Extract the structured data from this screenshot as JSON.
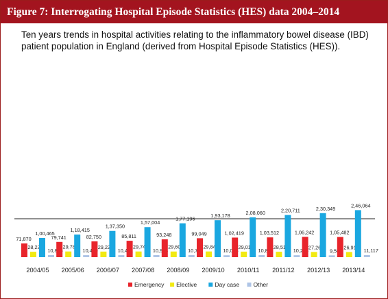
{
  "header": {
    "title": "Figure 7: Interrogating Hospital Episode Statistics (HES) data 2004–2014"
  },
  "colors": {
    "header_bg": "#a3141f",
    "emergency": "#e8242b",
    "elective": "#f2ea12",
    "day_case": "#1aa7e0",
    "other": "#aec4e6"
  },
  "chart_data": {
    "type": "bar",
    "title": "Ten years trends in hospital activities relating to the inflammatory bowel disease (IBD) patient population in England (derived from Hospital Episode Statistics (HES)).",
    "categories": [
      "2004/05",
      "2005/06",
      "2006/07",
      "2007/08",
      "2008/09",
      "2009/10",
      "2010/11",
      "2011/12",
      "2012/13",
      "2013/14"
    ],
    "series": [
      {
        "name": "Emergency",
        "color": "#e8242b",
        "values": [
          71870,
          79741,
          82750,
          85811,
          93248,
          99049,
          102419,
          103512,
          106242,
          105482
        ],
        "labels": [
          "71,870",
          "79,741",
          "82,750",
          "85,811",
          "93,248",
          "99,049",
          "1,02,419",
          "1,03,512",
          "1,06,242",
          "1,05,482"
        ]
      },
      {
        "name": "Elective",
        "color": "#f2ea12",
        "values": [
          28230,
          29787,
          29227,
          29749,
          29603,
          29841,
          29018,
          28519,
          27260,
          26911
        ],
        "labels": [
          "28,230",
          "29,787",
          "29,227",
          "29,749",
          "29,603",
          "29,841",
          "29,018",
          "28,519",
          "27,260",
          "26,911"
        ]
      },
      {
        "name": "Day case",
        "color": "#1aa7e0",
        "values": [
          100465,
          118415,
          137350,
          157004,
          177196,
          193178,
          208060,
          220711,
          230349,
          246064
        ],
        "labels": [
          "1,00,465",
          "1,18,415",
          "1,37,350",
          "1,57,004",
          "1,77,196",
          "1,93,178",
          "2,08,060",
          "2,20,711",
          "2,30,349",
          "2,46,064"
        ]
      },
      {
        "name": "Other",
        "color": "#aec4e6",
        "values": [
          10825,
          10459,
          10481,
          10954,
          10707,
          10058,
          10831,
          10268,
          9569,
          11117
        ],
        "labels": [
          "10,825",
          "10,459",
          "10,481",
          "10,954",
          "10,707",
          "10,058",
          "10,831",
          "10,268",
          "9,569",
          "11,117"
        ]
      }
    ],
    "legend": {
      "position": "bottom",
      "entries": [
        "Emergency",
        "Elective",
        "Day case",
        "Other"
      ]
    },
    "grid": false
  }
}
